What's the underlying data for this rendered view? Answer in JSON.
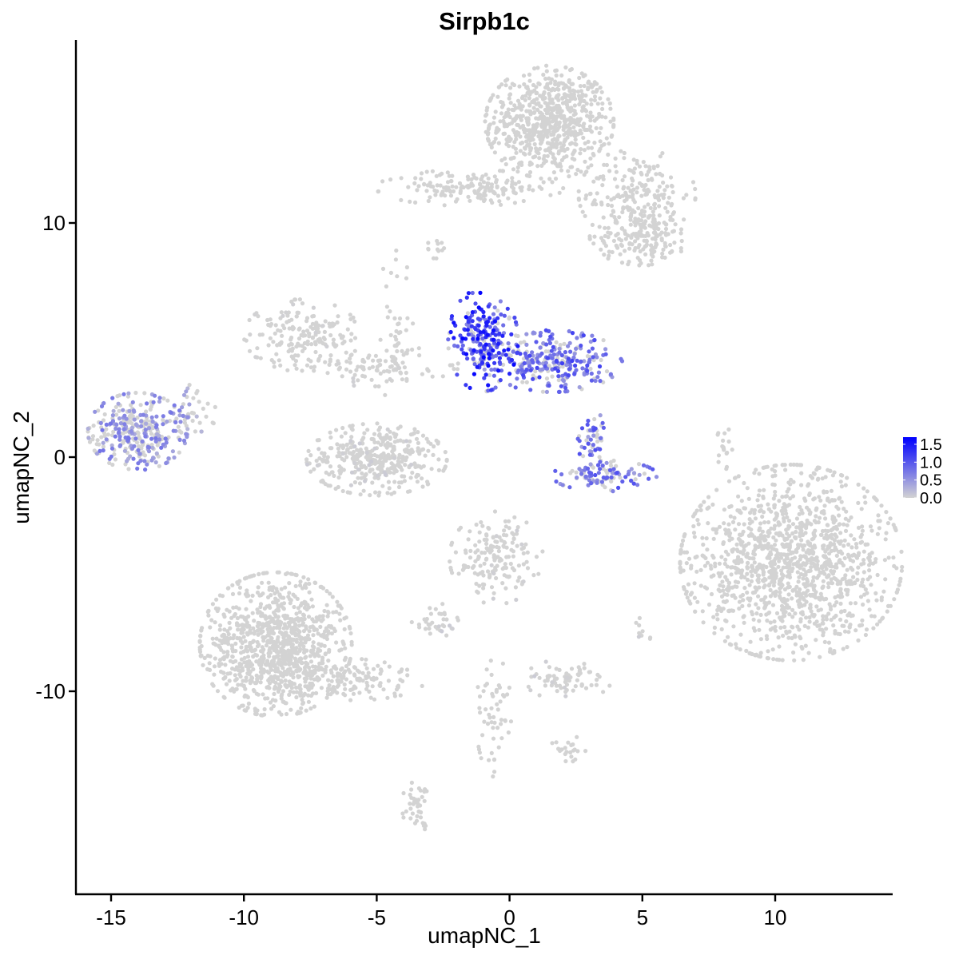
{
  "chart_data": {
    "type": "scatter",
    "title": "Sirpb1c",
    "xlabel": "umapNC_1",
    "ylabel": "umapNC_2",
    "xlim": [
      -16.5,
      14.5
    ],
    "ylim": [
      -18.5,
      17.5
    ],
    "x_ticks": [
      -15,
      -10,
      -5,
      0,
      5,
      10
    ],
    "x_tick_labels": [
      "-15",
      "-10",
      "-5",
      "0",
      "5",
      "10"
    ],
    "y_ticks": [
      -10,
      0,
      10
    ],
    "y_tick_labels": [
      "-10",
      "0",
      "10"
    ],
    "grid": false,
    "legend": {
      "position": "right",
      "type": "continuous",
      "min": 0.0,
      "max": 1.7,
      "ticks": [
        0.0,
        0.5,
        1.0,
        1.5
      ],
      "tick_labels": [
        "0.0",
        "0.5",
        "1.0",
        "1.5"
      ],
      "low_color": "#d3d3d3",
      "high_color": "#0000ff"
    },
    "point_color_low": "#d3d3d3",
    "point_color_high": "#0000ff",
    "clusters": [
      {
        "cx": 1.5,
        "cy": 14.3,
        "sx": 1.1,
        "sy": 1.1,
        "n": 700,
        "expr": 0.0
      },
      {
        "cx": -1.5,
        "cy": 11.5,
        "sx": 1.6,
        "sy": 0.35,
        "n": 160,
        "expr": 0.0
      },
      {
        "cx": 4.8,
        "cy": 11.2,
        "sx": 1.0,
        "sy": 0.9,
        "n": 200,
        "expr": 0.0
      },
      {
        "cx": 5.0,
        "cy": 9.4,
        "sx": 0.9,
        "sy": 0.55,
        "n": 170,
        "expr": 0.0
      },
      {
        "cx": -2.7,
        "cy": 8.9,
        "sx": 0.2,
        "sy": 0.2,
        "n": 12,
        "expr": 0.0
      },
      {
        "cx": -7.8,
        "cy": 5.2,
        "sx": 1.0,
        "sy": 0.7,
        "n": 180,
        "expr": 0.02
      },
      {
        "cx": -5.0,
        "cy": 3.9,
        "sx": 1.4,
        "sy": 0.4,
        "n": 90,
        "expr": 0.02
      },
      {
        "cx": -4.3,
        "cy": 5.5,
        "sx": 0.3,
        "sy": 1.6,
        "n": 40,
        "expr": 0.05
      },
      {
        "cx": -5.0,
        "cy": -0.1,
        "sx": 1.2,
        "sy": 0.7,
        "n": 380,
        "expr": 0.05
      },
      {
        "cx": -14.0,
        "cy": 1.1,
        "sx": 0.85,
        "sy": 0.75,
        "n": 330,
        "expr": 0.55
      },
      {
        "cx": -11.9,
        "cy": 2.0,
        "sx": 0.4,
        "sy": 0.5,
        "n": 40,
        "expr": 0.4
      },
      {
        "cx": -1.0,
        "cy": 5.0,
        "sx": 0.6,
        "sy": 1.0,
        "n": 220,
        "expr": 1.2
      },
      {
        "cx": 1.6,
        "cy": 4.1,
        "sx": 1.2,
        "sy": 0.6,
        "n": 280,
        "expr": 0.85
      },
      {
        "cx": 3.1,
        "cy": 0.8,
        "sx": 0.25,
        "sy": 0.55,
        "n": 50,
        "expr": 0.8
      },
      {
        "cx": 3.6,
        "cy": -0.8,
        "sx": 0.9,
        "sy": 0.3,
        "n": 100,
        "expr": 0.8
      },
      {
        "cx": 10.6,
        "cy": -4.5,
        "sx": 1.9,
        "sy": 1.9,
        "n": 1300,
        "expr": 0.0
      },
      {
        "cx": 8.1,
        "cy": 0.3,
        "sx": 0.15,
        "sy": 0.5,
        "n": 18,
        "expr": 0.0
      },
      {
        "cx": -0.5,
        "cy": -4.3,
        "sx": 0.8,
        "sy": 0.9,
        "n": 170,
        "expr": 0.03
      },
      {
        "cx": -8.8,
        "cy": -8.0,
        "sx": 1.3,
        "sy": 1.4,
        "n": 1000,
        "expr": 0.0
      },
      {
        "cx": -5.8,
        "cy": -9.5,
        "sx": 1.2,
        "sy": 0.4,
        "n": 130,
        "expr": 0.0
      },
      {
        "cx": -2.8,
        "cy": -7.0,
        "sx": 0.4,
        "sy": 0.35,
        "n": 35,
        "expr": 0.05
      },
      {
        "cx": 2.2,
        "cy": -9.5,
        "sx": 0.75,
        "sy": 0.4,
        "n": 70,
        "expr": 0.05
      },
      {
        "cx": -0.6,
        "cy": -11.0,
        "sx": 0.3,
        "sy": 1.2,
        "n": 55,
        "expr": 0.0
      },
      {
        "cx": 2.2,
        "cy": -12.5,
        "sx": 0.3,
        "sy": 0.3,
        "n": 22,
        "expr": 0.0
      },
      {
        "cx": -3.5,
        "cy": -14.8,
        "sx": 0.25,
        "sy": 0.6,
        "n": 40,
        "expr": 0.0
      },
      {
        "cx": 5.0,
        "cy": -7.5,
        "sx": 0.15,
        "sy": 0.3,
        "n": 10,
        "expr": 0.05
      }
    ]
  }
}
